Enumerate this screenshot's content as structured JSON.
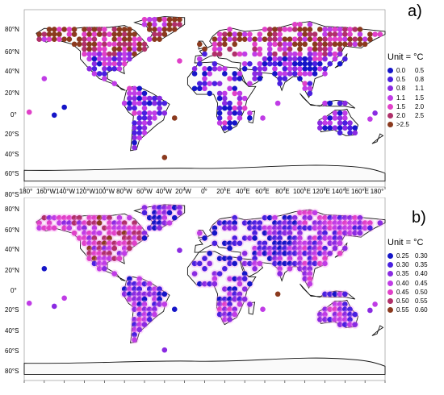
{
  "latitude_labels": [
    "80°N",
    "60°N",
    "40°N",
    "20°N",
    "0°",
    "20°S",
    "40°S",
    "60°S",
    "80°S"
  ],
  "longitude_labels": [
    "180°",
    "160°W",
    "140°W",
    "120°W",
    "100°W",
    "80°W",
    "60°W",
    "40°W",
    "20°W",
    "0°",
    "20°E",
    "40°E",
    "60°E",
    "80°E",
    "100°E",
    "120°E",
    "140°E",
    "160°E",
    "180°"
  ],
  "panels": [
    {
      "label": "a)",
      "legend": {
        "title": "Unit = °C",
        "items": [
          {
            "low": "0.0",
            "high": "0.5",
            "color": "#1515c8"
          },
          {
            "low": "0.5",
            "high": "0.8",
            "color": "#4a20e0"
          },
          {
            "low": "0.8",
            "high": "1.1",
            "color": "#8a2be2"
          },
          {
            "low": "1.1",
            "high": "1.5",
            "color": "#c03ce6"
          },
          {
            "low": "1.5",
            "high": "2.0",
            "color": "#e040c8"
          },
          {
            "low": "2.0",
            "high": "2.5",
            "color": "#b0306a"
          },
          {
            "low": ">2.5",
            "high": "",
            "color": "#8b3a1e"
          }
        ]
      }
    },
    {
      "label": "b)",
      "legend": {
        "title": "Unit = °C",
        "items": [
          {
            "low": "0.25",
            "high": "0.30",
            "color": "#1515c8"
          },
          {
            "low": "0.30",
            "high": "0.35",
            "color": "#4a20e0"
          },
          {
            "low": "0.35",
            "high": "0.40",
            "color": "#8a2be2"
          },
          {
            "low": "0.40",
            "high": "0.45",
            "color": "#c03ce6"
          },
          {
            "low": "0.45",
            "high": "0.50",
            "color": "#e040c8"
          },
          {
            "low": "0.50",
            "high": "0.55",
            "color": "#b0306a"
          },
          {
            "low": "0.55",
            "high": "0.60",
            "color": "#8b3a1e"
          }
        ]
      }
    }
  ]
}
